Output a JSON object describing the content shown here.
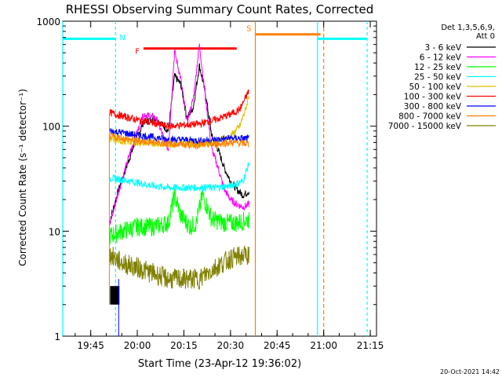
{
  "chart_data": {
    "type": "line",
    "title": "RHESSI Observing Summary Count Rates, Corrected",
    "xlabel": "Start Time (23-Apr-12 19:36:02)",
    "ylabel": "Corrected Count Rate (s⁻¹ detector⁻¹)",
    "yscale": "log",
    "ylim": [
      1,
      1000
    ],
    "xlim": [
      "19:36",
      "21:17"
    ],
    "y_ticks": [
      "1",
      "10",
      "100",
      "1000"
    ],
    "x_ticks": [
      "19:45",
      "20:00",
      "20:15",
      "20:30",
      "20:45",
      "21:00",
      "21:15"
    ],
    "legend_header": [
      "Det 1,3,5,6,9,",
      "Att 0"
    ],
    "legend_position": "top-right",
    "footer_date": "20-Oct-2021 14:42",
    "series": [
      {
        "name": "3 - 6 keV",
        "color": "#000000",
        "x": [
          "19:51",
          "19:54",
          "19:58",
          "20:02",
          "20:06",
          "20:10",
          "20:12",
          "20:14",
          "20:16",
          "20:18",
          "20:20",
          "20:22",
          "20:24",
          "20:26",
          "20:28",
          "20:30",
          "20:32",
          "20:34",
          "20:36"
        ],
        "y": [
          12,
          25,
          55,
          110,
          120,
          90,
          300,
          250,
          120,
          150,
          380,
          200,
          80,
          60,
          40,
          30,
          25,
          22,
          24
        ]
      },
      {
        "name": "6 - 12 keV",
        "color": "#ff00ff",
        "x": [
          "19:51",
          "19:54",
          "19:58",
          "20:02",
          "20:06",
          "20:10",
          "20:12",
          "20:14",
          "20:16",
          "20:18",
          "20:20",
          "20:22",
          "20:24",
          "20:26",
          "20:28",
          "20:30",
          "20:32",
          "20:34",
          "20:36"
        ],
        "y": [
          11,
          24,
          60,
          130,
          120,
          60,
          520,
          280,
          110,
          180,
          600,
          180,
          60,
          40,
          25,
          20,
          18,
          17,
          18
        ]
      },
      {
        "name": "12 - 25 keV",
        "color": "#00ff00",
        "x": [
          "19:51",
          "19:55",
          "20:00",
          "20:05",
          "20:10",
          "20:12",
          "20:14",
          "20:17",
          "20:19",
          "20:21",
          "20:24",
          "20:28",
          "20:32",
          "20:36"
        ],
        "y": [
          9,
          10,
          11,
          11,
          12,
          22,
          14,
          11,
          12,
          22,
          13,
          12,
          12,
          13
        ]
      },
      {
        "name": "25 - 50 keV",
        "color": "#00ffff",
        "x": [
          "19:51",
          "19:55",
          "20:00",
          "20:05",
          "20:10",
          "20:15",
          "20:20",
          "20:25",
          "20:30",
          "20:34",
          "20:36"
        ],
        "y": [
          32,
          31,
          29,
          27,
          26,
          26,
          26,
          26,
          27,
          30,
          45
        ]
      },
      {
        "name": "50 - 100 keV",
        "color": "#e0c000",
        "x": [
          "19:51",
          "19:55",
          "20:00",
          "20:10",
          "20:20",
          "20:25",
          "20:30",
          "20:33",
          "20:35",
          "20:36"
        ],
        "y": [
          75,
          72,
          70,
          68,
          68,
          70,
          80,
          100,
          150,
          200
        ]
      },
      {
        "name": "100 - 300 keV",
        "color": "#ff0000",
        "x": [
          "19:51",
          "19:55",
          "20:00",
          "20:10",
          "20:20",
          "20:25",
          "20:30",
          "20:33",
          "20:35",
          "20:36"
        ],
        "y": [
          135,
          125,
          115,
          100,
          105,
          115,
          130,
          145,
          190,
          220
        ]
      },
      {
        "name": "300 - 800 keV",
        "color": "#0000ff",
        "x": [
          "19:51",
          "19:55",
          "20:00",
          "20:10",
          "20:20",
          "20:25",
          "20:30",
          "20:36"
        ],
        "y": [
          90,
          87,
          82,
          75,
          73,
          74,
          77,
          76
        ]
      },
      {
        "name": "800 - 7000 keV",
        "color": "#ff8000",
        "x": [
          "19:51",
          "19:55",
          "20:00",
          "20:10",
          "20:20",
          "20:25",
          "20:30",
          "20:36"
        ],
        "y": [
          80,
          77,
          73,
          68,
          66,
          67,
          70,
          68
        ]
      },
      {
        "name": "7000 - 15000 keV",
        "color": "#808000",
        "x": [
          "19:51",
          "19:55",
          "20:00",
          "20:10",
          "20:20",
          "20:25",
          "20:30",
          "20:36"
        ],
        "y": [
          6.0,
          5.0,
          4.5,
          3.5,
          3.5,
          4.5,
          5.5,
          6.0
        ]
      }
    ],
    "annotations": [
      {
        "text": "N",
        "color": "#00ffff",
        "x": "19:53"
      },
      {
        "text": "F",
        "color": "#ff0000",
        "x_start": "20:02",
        "x_end": "20:32",
        "y": 550
      },
      {
        "text": "S",
        "color": "#ff8000",
        "x_start": "20:38",
        "x_end": "20:59",
        "y": 750
      }
    ]
  }
}
